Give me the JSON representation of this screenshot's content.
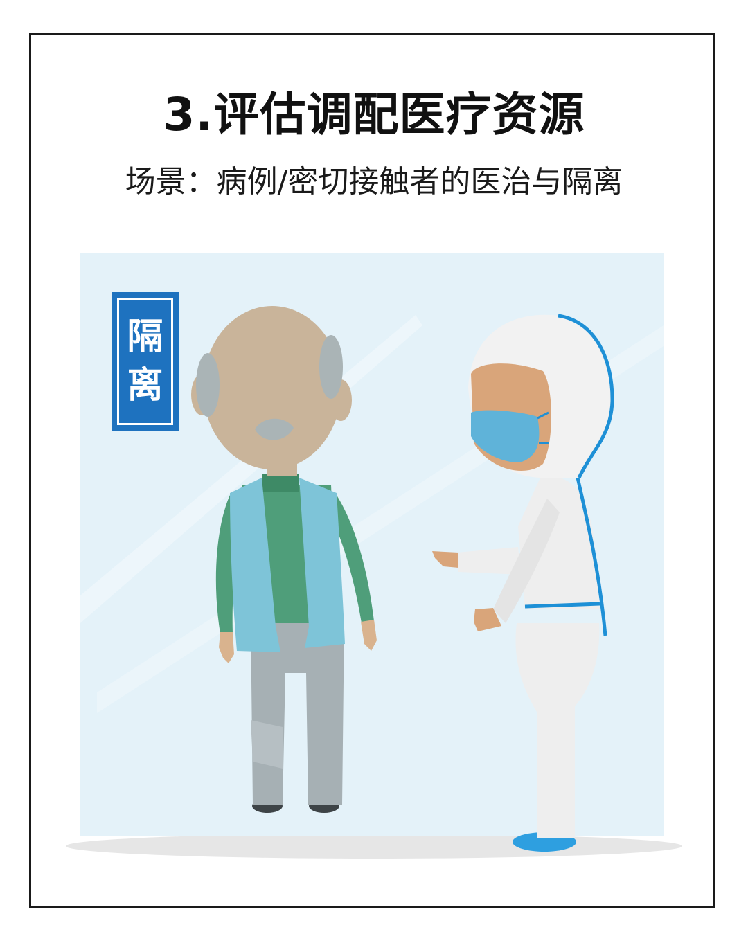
{
  "title": "3.评估调配医疗资源",
  "subtitle": "场景：病例/密切接触者的医治与隔离",
  "sign": {
    "char1": "隔",
    "char2": "离"
  },
  "colors": {
    "panel": "#e4f2f9",
    "sign_blue": "#1e72bf",
    "vest_blue": "#7ec4d8",
    "sweater_green": "#4f9e7a",
    "skin": "#d9a57a",
    "mask_blue": "#5fb3d9",
    "suit_white": "#eeeeee",
    "suit_trim": "#1e90d6"
  }
}
